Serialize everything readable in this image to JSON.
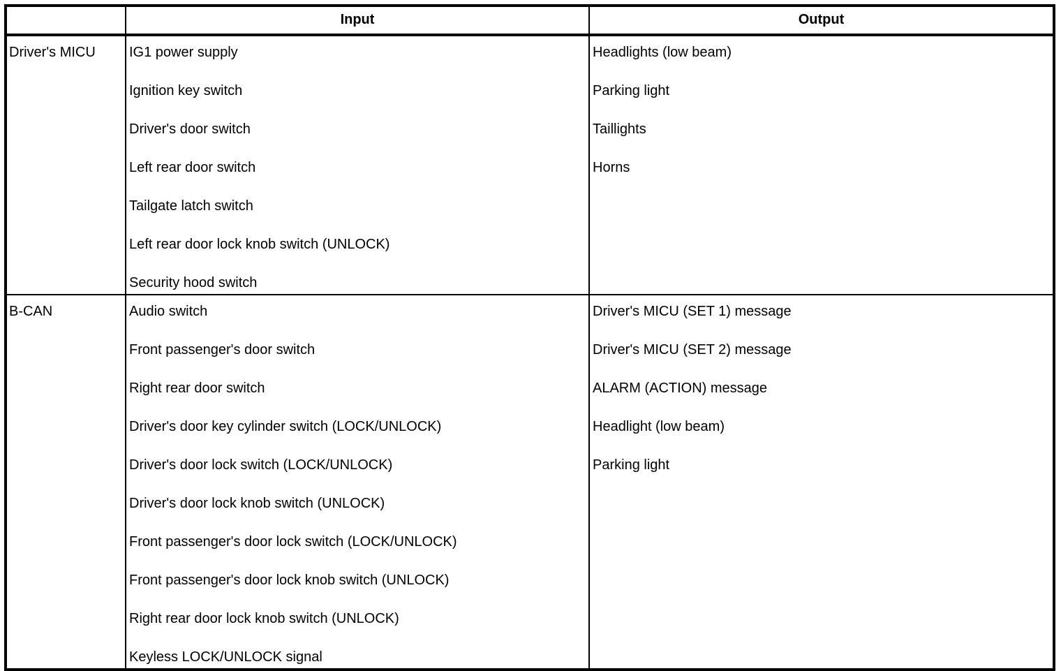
{
  "table": {
    "headers": {
      "source": "",
      "input": "Input",
      "output": "Output"
    },
    "rows": [
      {
        "source": "Driver's MICU",
        "inputs": [
          "IG1 power supply",
          "Ignition key switch",
          "Driver's door switch",
          "Left rear door switch",
          "Tailgate latch switch",
          "Left rear door lock knob switch (UNLOCK)",
          "Security hood switch"
        ],
        "outputs": [
          "Headlights (low beam)",
          "Parking light",
          "Taillights",
          "Horns"
        ]
      },
      {
        "source": "B-CAN",
        "inputs": [
          "Audio switch",
          "Front passenger's door switch",
          "Right rear door switch",
          "Driver's door key cylinder switch (LOCK/UNLOCK)",
          "Driver's door lock switch (LOCK/UNLOCK)",
          "Driver's door lock knob switch (UNLOCK)",
          "Front passenger's door lock switch (LOCK/UNLOCK)",
          "Front passenger's door lock knob switch (UNLOCK)",
          "Right rear door lock knob switch (UNLOCK)",
          "Keyless LOCK/UNLOCK signal"
        ],
        "outputs": [
          "Driver's MICU (SET 1) message",
          "Driver's MICU (SET 2) message",
          "ALARM (ACTION) message",
          "Headlight (low beam)",
          "Parking light"
        ]
      }
    ],
    "colors": {
      "border": "#000000",
      "background": "#ffffff",
      "text": "#000000"
    }
  }
}
